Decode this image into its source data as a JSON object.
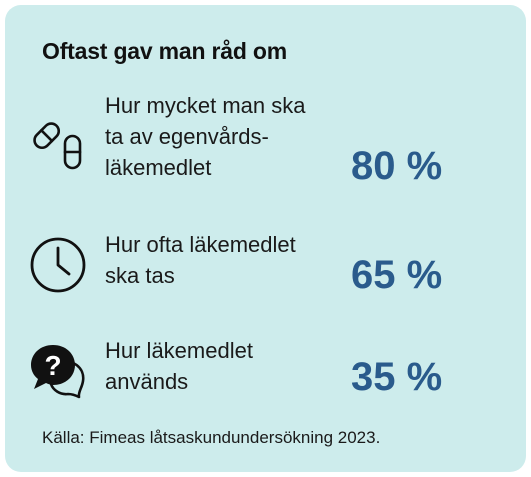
{
  "title": "Oftast gav man råd om",
  "chart_data": {
    "type": "table",
    "title": "Oftast gav man råd om",
    "unit": "%",
    "categories": [
      "Hur mycket man ska ta av egenvårds-läkemedlet",
      "Hur ofta läkemedlet ska tas",
      "Hur läkemedlet används"
    ],
    "values": [
      80,
      65,
      35
    ]
  },
  "rows": [
    {
      "icon": "pills-icon",
      "label": "Hur mycket man ska\nta av egenvårds-\nläkemedlet",
      "value_text": "80 %"
    },
    {
      "icon": "clock-icon",
      "label": "Hur ofta läkemedlet\nska tas",
      "value_text": "65 %"
    },
    {
      "icon": "question-bubble-icon",
      "label": "Hur läkemedlet\nanvänds",
      "value_text": "35 %"
    }
  ],
  "source": "Källa: Fimeas låtsaskundundersökning 2023.",
  "colors": {
    "background": "#cdecec",
    "value": "#2a5b8c",
    "text": "#111111"
  }
}
